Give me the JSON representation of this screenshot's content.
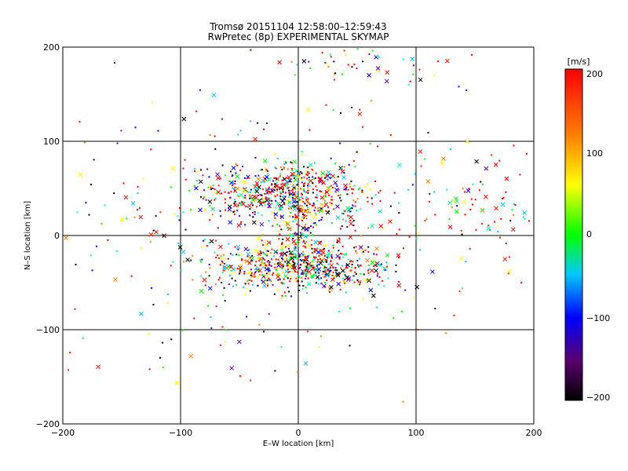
{
  "chart_data": {
    "type": "scatter",
    "title": "Tromsø 20151104 12:58:00–12:59:43",
    "subtitle": "RwPretec (8p) EXPERIMENTAL SKYMAP",
    "xlabel": "E–W location [km]",
    "ylabel": "N–S location [km]",
    "xlim": [
      -200,
      200
    ],
    "ylim": [
      -200,
      200
    ],
    "x_ticks": [
      "−200",
      "−100",
      "0",
      "100",
      "200"
    ],
    "y_ticks": [
      "200",
      "100",
      "0",
      "−100",
      "−200"
    ],
    "grid": true,
    "markers": [
      "dot",
      "cross"
    ],
    "colorbar": {
      "label": "[m/s]",
      "range": [
        -200,
        200
      ],
      "ticks": [
        "200",
        "100",
        "0",
        "−100",
        "−200"
      ],
      "colormap": "black-purple-blue-cyan-green-yellow-orange-red"
    },
    "point_groups": [
      {
        "region": "upper band",
        "x_center": -10,
        "y_center": 45,
        "x_spread": 35,
        "y_spread": 15,
        "count": 520
      },
      {
        "region": "lower band",
        "x_center": 0,
        "y_center": -32,
        "x_spread": 38,
        "y_spread": 12,
        "count": 560
      },
      {
        "region": "central column",
        "x_center": 5,
        "y_center": 5,
        "x_spread": 10,
        "y_spread": 25,
        "count": 120
      },
      {
        "region": "scattered field",
        "x_center": -20,
        "y_center": 10,
        "x_spread": 90,
        "y_spread": 70,
        "count": 420
      },
      {
        "region": "top edge",
        "x_center": 60,
        "y_center": 185,
        "x_spread": 50,
        "y_spread": 12,
        "count": 50
      },
      {
        "region": "east cluster",
        "x_center": 150,
        "y_center": 30,
        "x_spread": 30,
        "y_spread": 20,
        "count": 60
      }
    ]
  },
  "colors": {
    "axis": "#000000",
    "background": "#ffffff"
  }
}
